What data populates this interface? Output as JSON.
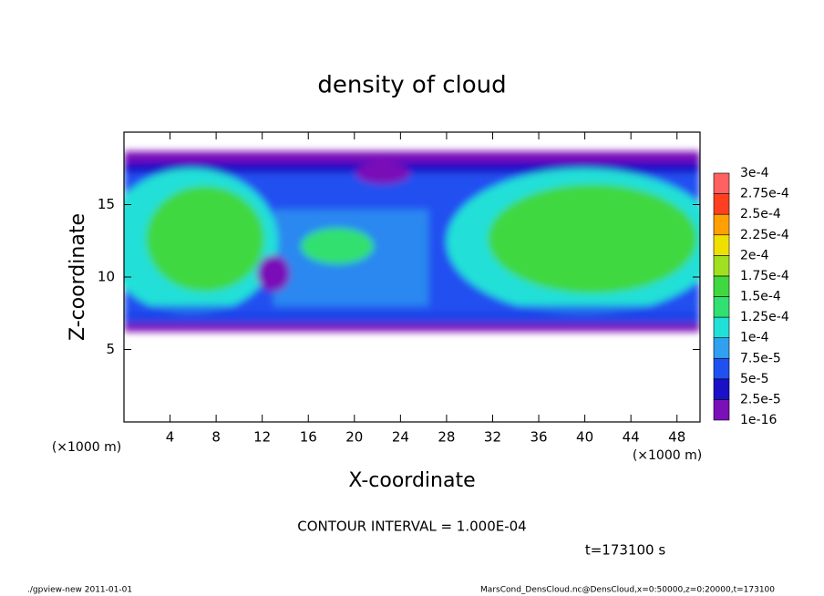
{
  "chart_data": {
    "type": "heatmap",
    "title": "density of cloud",
    "xlabel": "X-coordinate",
    "ylabel": "Z-coordinate",
    "x_unit": "(×1000 m)",
    "y_unit": "(×1000 m)",
    "xlim": [
      0,
      50
    ],
    "ylim": [
      0,
      20
    ],
    "xticks": [
      4,
      8,
      12,
      16,
      20,
      24,
      28,
      32,
      36,
      40,
      44,
      48
    ],
    "yticks": [
      5,
      10,
      15
    ],
    "colorbar_levels": [
      {
        "value": 1e-16,
        "label": "1e-16"
      },
      {
        "value": 2.5e-05,
        "label": "2.5e-5"
      },
      {
        "value": 5e-05,
        "label": "5e-5"
      },
      {
        "value": 7.5e-05,
        "label": "7.5e-5"
      },
      {
        "value": 0.0001,
        "label": "1e-4"
      },
      {
        "value": 0.000125,
        "label": "1.25e-4"
      },
      {
        "value": 0.00015,
        "label": "1.5e-4"
      },
      {
        "value": 0.000175,
        "label": "1.75e-4"
      },
      {
        "value": 0.0002,
        "label": "2e-4"
      },
      {
        "value": 0.000225,
        "label": "2.25e-4"
      },
      {
        "value": 0.00025,
        "label": "2.5e-4"
      },
      {
        "value": 0.000275,
        "label": "2.75e-4"
      },
      {
        "value": 0.0003,
        "label": "3e-4"
      }
    ],
    "colorbar_colors": [
      "#7a10b8",
      "#1a10c8",
      "#2050f0",
      "#30a0f0",
      "#20e0d8",
      "#30e070",
      "#40d840",
      "#a0e020",
      "#f0e000",
      "#ffa000",
      "#ff4020",
      "#ff6060"
    ],
    "annotations": [
      "CONTOUR INTERVAL = 1.000E-04",
      "t=173100 s"
    ],
    "footer_left": "./gpview-new  2011-01-01",
    "footer_right": "MarsCond_DensCloud.nc@DensCloud,x=0:50000,z=0:20000,t=173100"
  }
}
